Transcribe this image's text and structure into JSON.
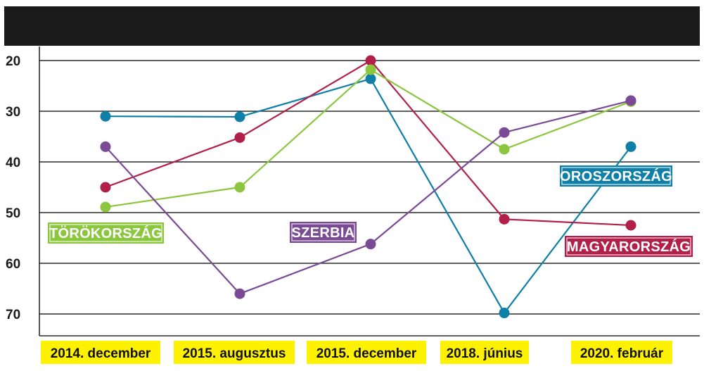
{
  "chart_data": {
    "type": "line",
    "title": "",
    "xlabel": "",
    "ylabel": "",
    "y_inverted": true,
    "ylim": [
      17.5,
      75
    ],
    "yticks": [
      20,
      30,
      40,
      50,
      60,
      70
    ],
    "grid": true,
    "categories": [
      "2014. december",
      "2015. augusztus",
      "2015. december",
      "2018. június",
      "2020. február"
    ],
    "category_highlight_color": "#fff200",
    "series": [
      {
        "name": "OROSZORSZÁG",
        "color": "#0e7fa6",
        "values": [
          31.0,
          31.1,
          23.6,
          69.8,
          37.0
        ]
      },
      {
        "name": "MAGYARORSZÁG",
        "color": "#b2204a",
        "values": [
          45.0,
          35.2,
          20.0,
          51.3,
          52.5
        ]
      },
      {
        "name": "TÖRÖKORSZÁG",
        "color": "#8cc63f",
        "values": [
          48.9,
          45.0,
          21.8,
          37.5,
          28.1
        ]
      },
      {
        "name": "SZERBIA",
        "color": "#7a4b94",
        "values": [
          37.0,
          66.0,
          56.2,
          34.2,
          27.9
        ]
      }
    ]
  }
}
